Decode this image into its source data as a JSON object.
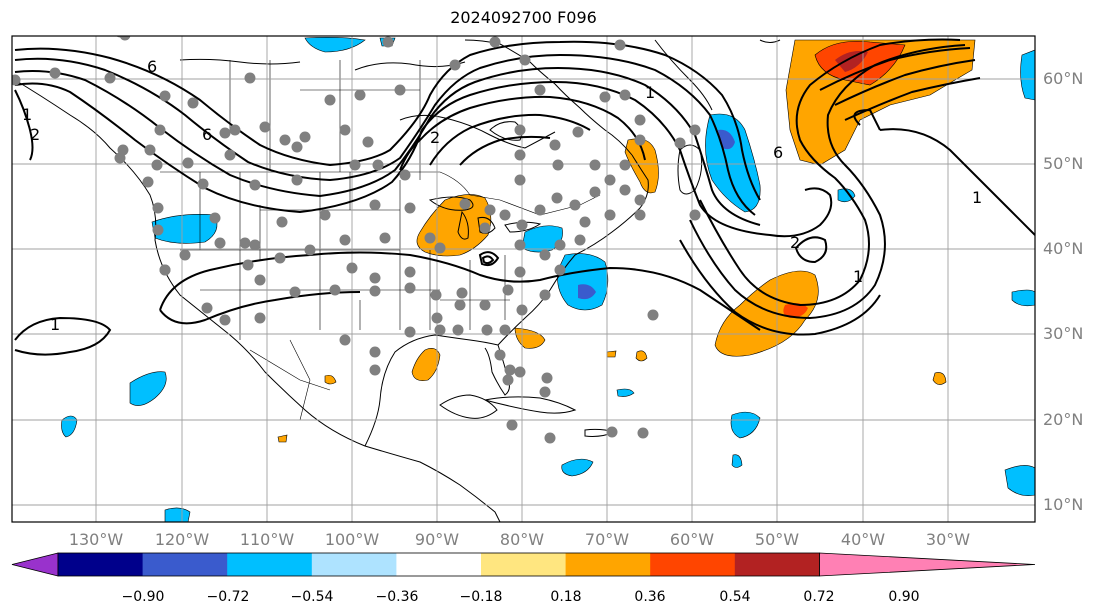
{
  "title": "2024092700 F096",
  "lon_labels": [
    "130°W",
    "120°W",
    "110°W",
    "100°W",
    "90°W",
    "80°W",
    "70°W",
    "60°W",
    "50°W",
    "40°W",
    "30°W"
  ],
  "lat_labels": [
    "60°N",
    "50°N",
    "40°N",
    "30°N",
    "20°N",
    "10°N"
  ],
  "colorbar": {
    "tick_labels": [
      "−0.90",
      "−0.72",
      "−0.54",
      "−0.36",
      "−0.18",
      "0.18",
      "0.36",
      "0.54",
      "0.72",
      "0.90"
    ],
    "colors": [
      "#9932cc",
      "#00008b",
      "#3a5bcd",
      "#00bfff",
      "#aee3ff",
      "#ffffff",
      "#ffe680",
      "#ffa500",
      "#ff4500",
      "#b22222",
      "#ff80b4"
    ]
  },
  "contour_labels": [
    "6",
    "1",
    "2",
    "2",
    "1",
    "6",
    "2",
    "6",
    "1",
    "1",
    "1"
  ],
  "colors": {
    "contour": "#000000",
    "stations": "#808080",
    "grid": "#a0a0a0"
  }
}
